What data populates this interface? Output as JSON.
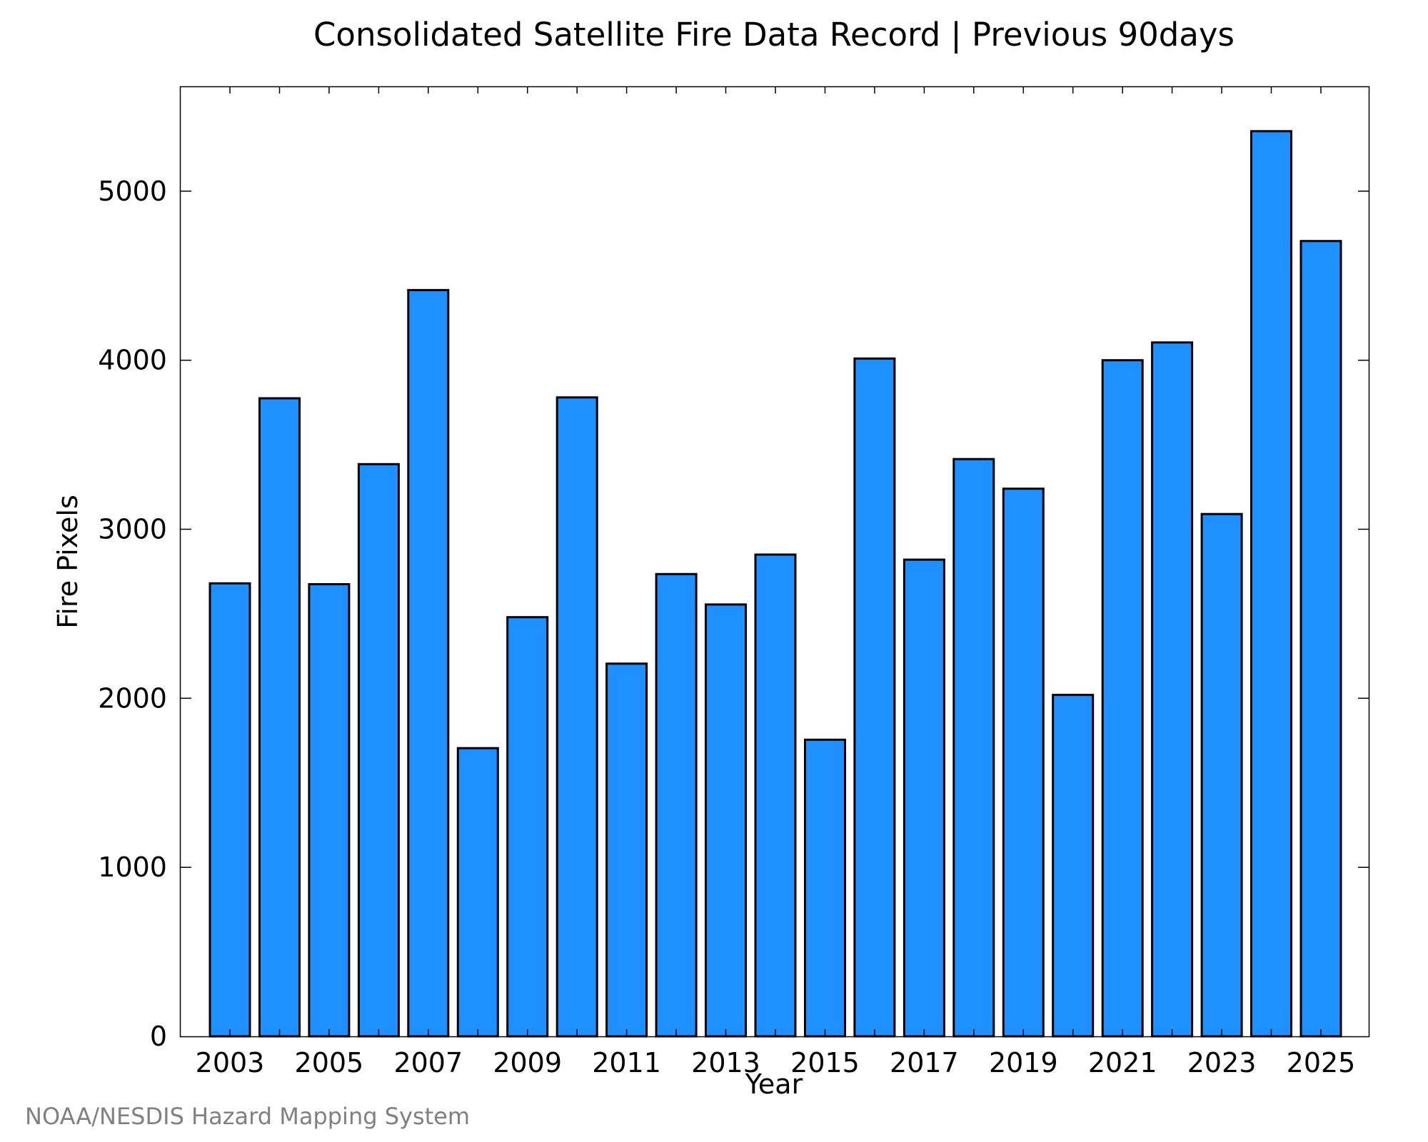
{
  "chart_data": {
    "type": "bar",
    "title": "Consolidated Satellite Fire Data Record | Previous 90days",
    "xlabel": "Year",
    "ylabel": "Fire Pixels",
    "categories": [
      "2003",
      "2004",
      "2005",
      "2006",
      "2007",
      "2008",
      "2009",
      "2010",
      "2011",
      "2012",
      "2013",
      "2014",
      "2015",
      "2016",
      "2017",
      "2018",
      "2019",
      "2020",
      "2021",
      "2022",
      "2023",
      "2024",
      "2025"
    ],
    "values": [
      2680,
      3775,
      2675,
      3385,
      4415,
      1705,
      2480,
      3780,
      2205,
      2735,
      2555,
      2850,
      1755,
      4010,
      2820,
      3415,
      3240,
      2020,
      4000,
      4105,
      3090,
      5355,
      4705
    ],
    "x_tick_labels": [
      "2003",
      "2005",
      "2007",
      "2009",
      "2011",
      "2013",
      "2015",
      "2017",
      "2019",
      "2021",
      "2023",
      "2025"
    ],
    "y_ticks": [
      0,
      1000,
      2000,
      3000,
      4000,
      5000
    ],
    "ylim": [
      0,
      5620
    ],
    "grid": false,
    "legend": "none",
    "bar_color": "#1e90ff",
    "bar_edge_color": "#000000"
  },
  "credit": {
    "text": "NOAA/NESDIS Hazard Mapping System",
    "color": "#808080"
  }
}
